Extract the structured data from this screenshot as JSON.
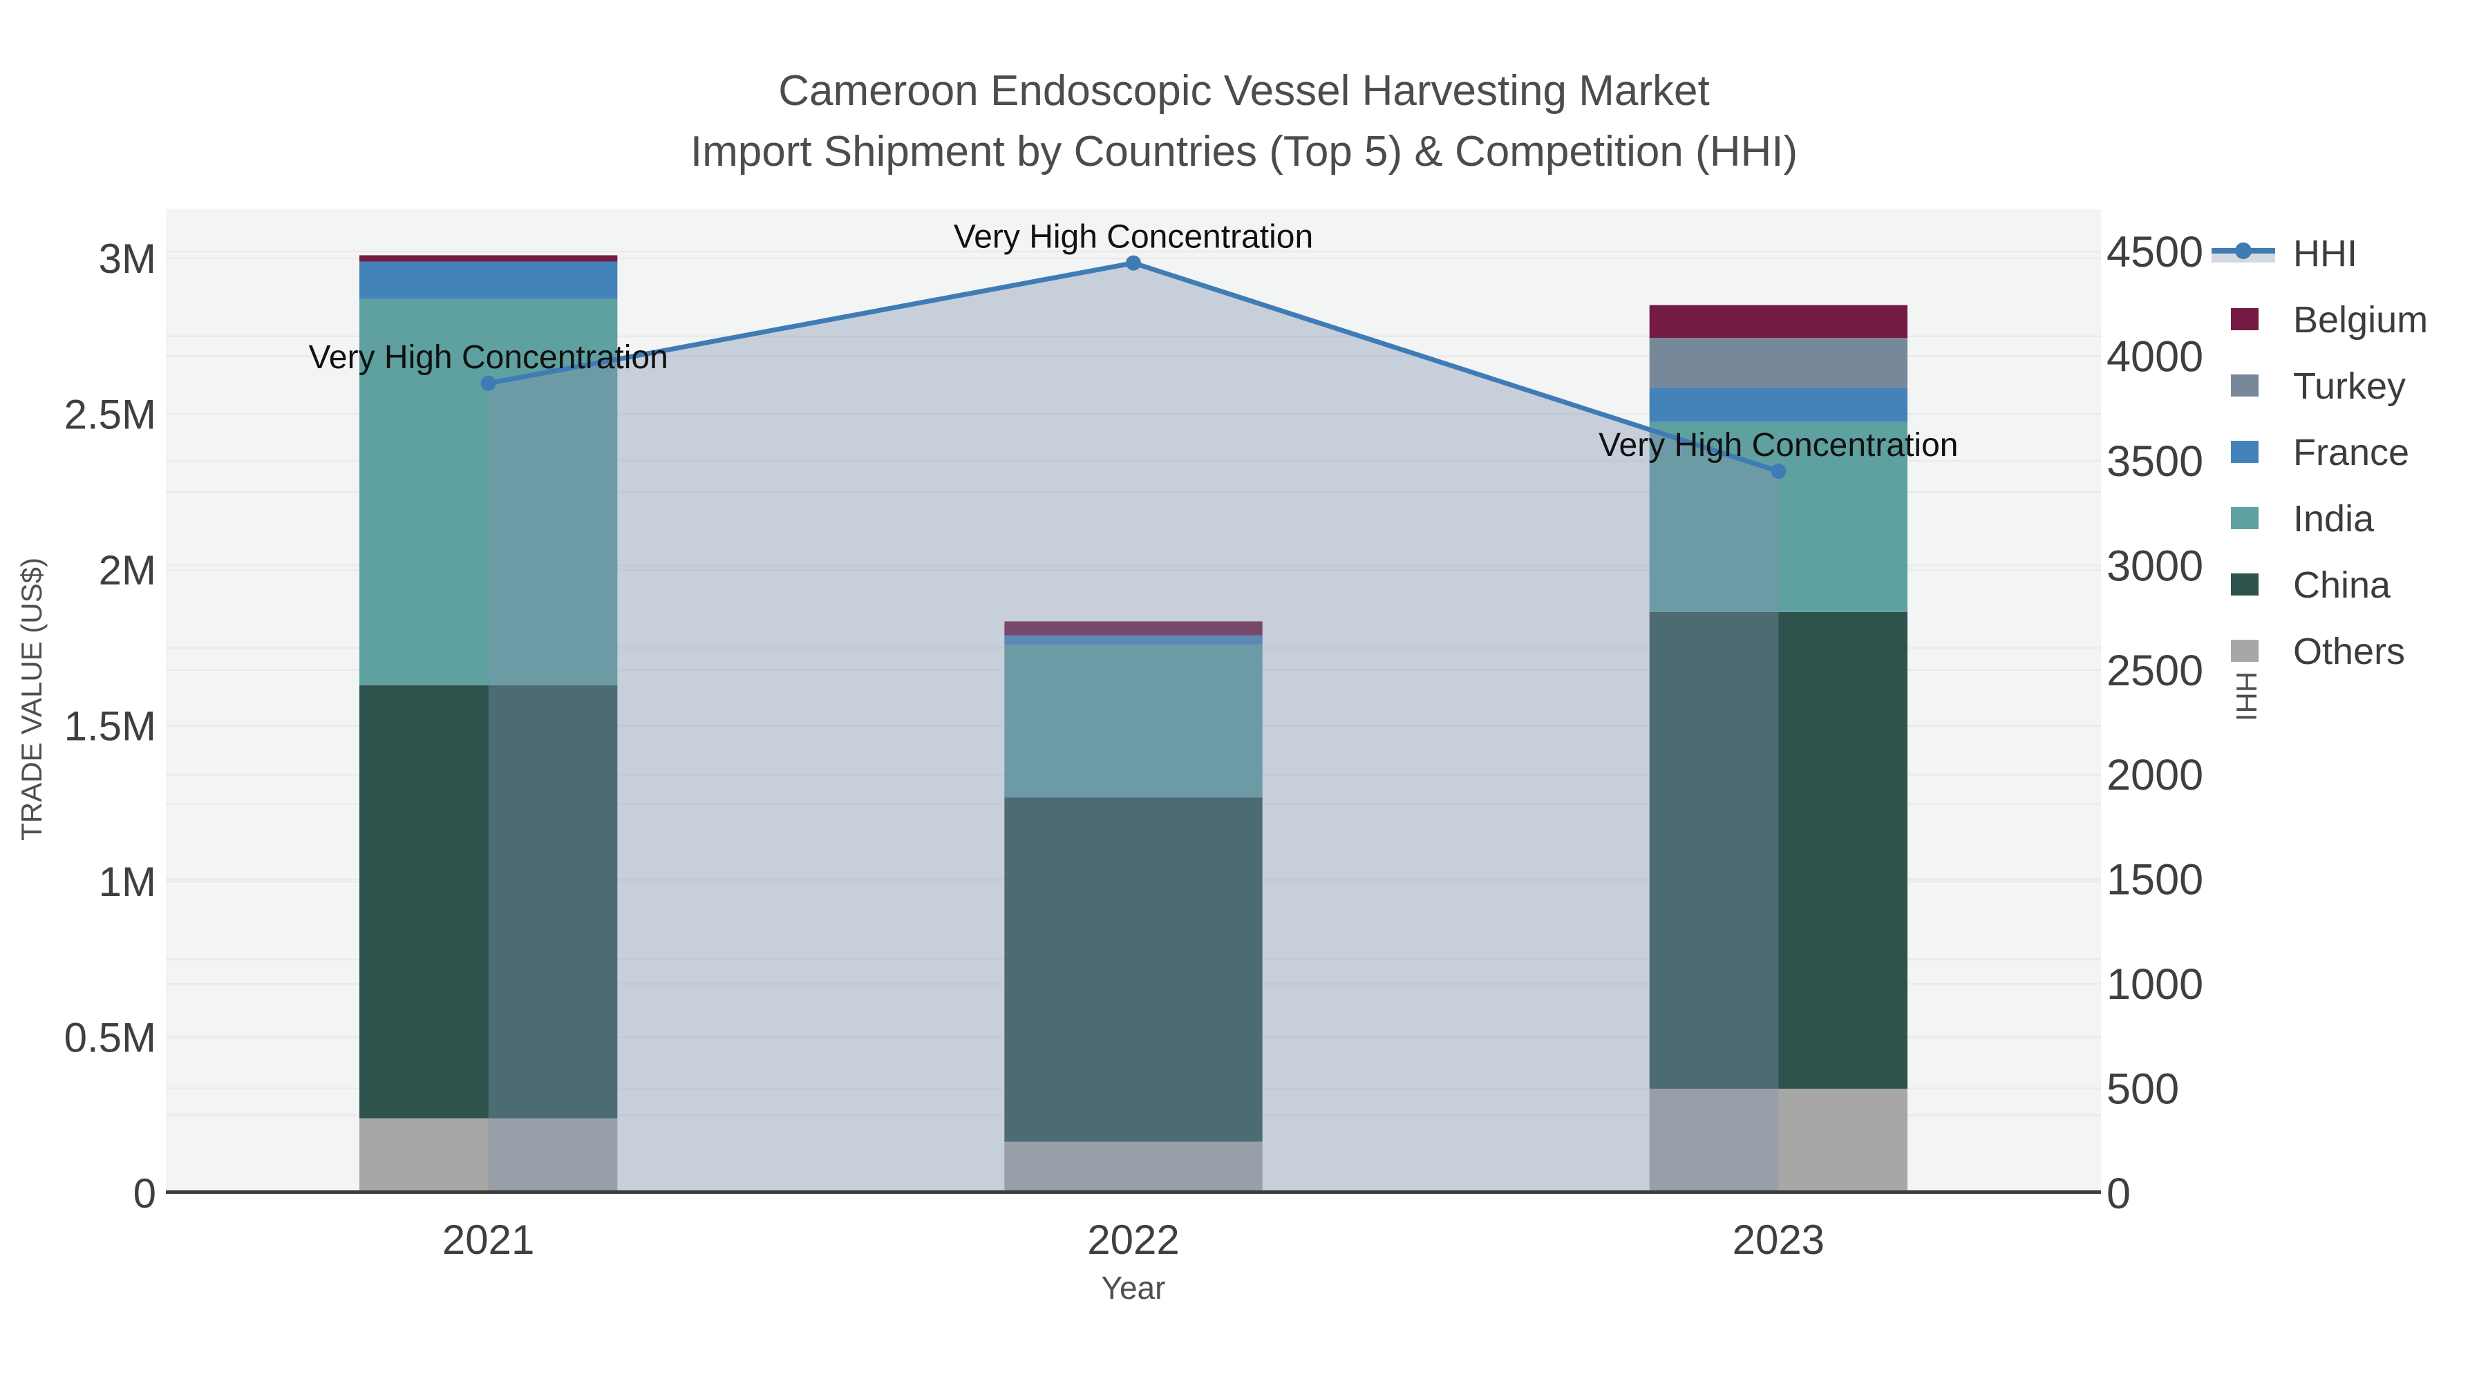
{
  "chart_data": {
    "type": "combo-stacked-bar-line",
    "title": "Cameroon Endoscopic Vessel Harvesting Market",
    "subtitle": "Import Shipment by Countries (Top 5) & Competition (HHI)",
    "xlabel": "Year",
    "ylabel_left": "TRADE VALUE (US$)",
    "ylabel_right": "HHI",
    "categories": [
      "2021",
      "2022",
      "2023"
    ],
    "bar_series": [
      {
        "name": "Belgium",
        "color": "#731b42",
        "values": [
          20000,
          45000,
          105000
        ]
      },
      {
        "name": "Turkey",
        "color": "#78889b",
        "values": [
          0,
          0,
          160000
        ]
      },
      {
        "name": "France",
        "color": "#4383ba",
        "values": [
          120000,
          30000,
          110000
        ]
      },
      {
        "name": "India",
        "color": "#5fa0a0",
        "values": [
          1240000,
          490000,
          610000
        ]
      },
      {
        "name": "China",
        "color": "#2e534d",
        "values": [
          1390000,
          1105000,
          1530000
        ]
      },
      {
        "name": "Others",
        "color": "#a7a7a5",
        "values": [
          240000,
          165000,
          335000
        ]
      }
    ],
    "bar_stack_note": "series listed top-to-bottom of stack; Others is bottom segment",
    "line_series": {
      "name": "HHI",
      "color": "#3f7cb6",
      "fill_color": "rgba(130,148,175,0.38)",
      "marker": "circle",
      "values": [
        3870,
        4445,
        3450
      ]
    },
    "annotations": [
      {
        "x": "2021",
        "text": "Very High Concentration"
      },
      {
        "x": "2022",
        "text": "Very High Concentration"
      },
      {
        "x": "2023",
        "text": "Very High Concentration"
      }
    ],
    "y_left": {
      "ylim": [
        0,
        3160000
      ],
      "tick_values": [
        0,
        500000,
        1000000,
        1500000,
        2000000,
        2500000,
        3000000
      ],
      "tick_labels": [
        "0",
        "0.5M",
        "1M",
        "1.5M",
        "2M",
        "2.5M",
        "3M"
      ]
    },
    "y_right": {
      "ylim": [
        0,
        4700
      ],
      "tick_values": [
        0,
        500,
        1000,
        1500,
        2000,
        2500,
        3000,
        3500,
        4000,
        4500
      ],
      "tick_labels": [
        "0",
        "500",
        "1000",
        "1500",
        "2000",
        "2500",
        "3000",
        "3500",
        "4000",
        "4500"
      ]
    },
    "legend_order": [
      "HHI",
      "Belgium",
      "Turkey",
      "France",
      "India",
      "China",
      "Others"
    ],
    "grid": "on",
    "legend_position": "right",
    "plot_bg_color": "#f3f4f4",
    "grid_color": "#e9eaeb"
  }
}
